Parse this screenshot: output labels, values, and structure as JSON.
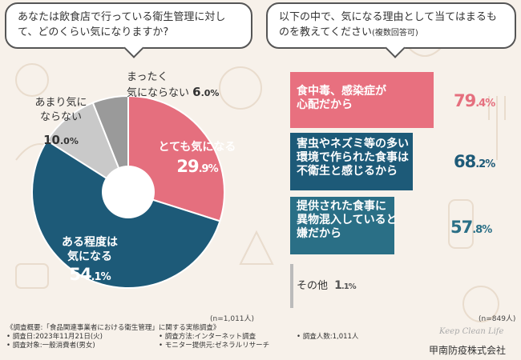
{
  "question1": "あなたは飲食店で行っている衛生管理に対して、どのくらい気になりますか?",
  "question2_main": "以下の中で、気になる理由として当てはまるものを教えてください",
  "question2_note": "(複数回答可)",
  "colors": {
    "pink": "#e56f7e",
    "blue": "#1d5a78",
    "gray_light": "#c9c9c9",
    "gray_dark": "#9a9a9a",
    "bar_pink": "#e8707f",
    "bar_pink_text": "#e56f7e",
    "bar_blue_text": "#1d5a78",
    "bar_blue_text2": "#2a6f86",
    "bar_pink_bg": "#f4bcc3",
    "bar_blue_bg": "#2a6f86",
    "bar_blue_bg2": "#86b9c9",
    "bar_gray_bg": "#e3e3e3"
  },
  "chart_data": [
    {
      "type": "pie",
      "title": "あなたは飲食店で行っている衛生管理に対して、どのくらい気になりますか?",
      "n_label": "(n=1,011人)",
      "slices": [
        {
          "label": "とても気になる",
          "int": "29",
          "dec": ".9%",
          "value": 29.9
        },
        {
          "label1": "ある程度は",
          "label2": "気になる",
          "int": "54",
          "dec": ".1%",
          "value": 54.1
        },
        {
          "label1": "あまり気に",
          "label2": "ならない",
          "int": "10",
          "dec": ".0%",
          "value": 10.0
        },
        {
          "label1": "まったく",
          "label2": "気にならない",
          "int": "6",
          "dec": ".0%",
          "value": 6.0
        }
      ]
    },
    {
      "type": "bar",
      "title": "以下の中で、気になる理由として当てはまるものを教えてください(複数回答可)",
      "n_label": "(n=849人)",
      "bars": [
        {
          "line1": "食中毒、感染症が",
          "line2": "心配だから",
          "int": "79",
          "dec": ".4%",
          "value": 79.4
        },
        {
          "line1": "害虫やネズミ等の多い",
          "line2": "環境で作られた食事は",
          "line3": "不衛生と感じるから",
          "int": "68",
          "dec": ".2%",
          "value": 68.2
        },
        {
          "line1": "提供された食事に",
          "line2": "異物混入していると",
          "line3": "嫌だから",
          "int": "57",
          "dec": ".8%",
          "value": 57.8
        },
        {
          "line1": "その他",
          "int": "1",
          "dec": ".1%",
          "value": 1.1
        }
      ]
    }
  ],
  "footer": {
    "line1": "《調査概要:「食品関連事業者における衛生管理」に関する実態調査》",
    "date": "• 調査日:2023年11月21日(火)",
    "target": "• 調査対象:一般消費者(男女)",
    "method": "• 調査方法:インターネット調査",
    "monitor": "• モニター提供元:ゼネラルリサーチ",
    "count": "• 調査人数:1,011人"
  },
  "company": "甲南防疫株式会社",
  "signature": "Keep Clean Life"
}
